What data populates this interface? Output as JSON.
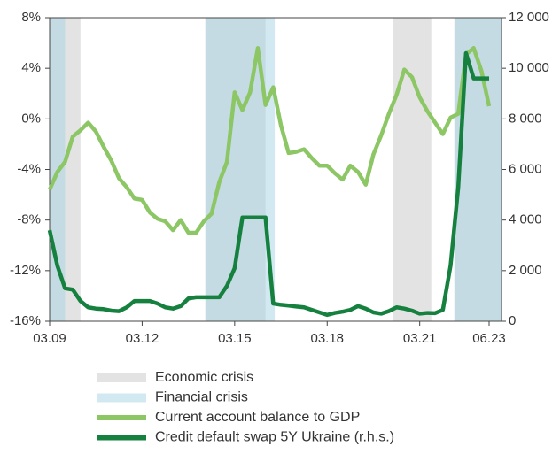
{
  "chart_data": {
    "type": "line",
    "categories": [
      "03.09",
      null,
      null,
      null,
      null,
      null,
      null,
      null,
      null,
      null,
      null,
      null,
      "03.12",
      null,
      null,
      null,
      null,
      null,
      null,
      null,
      null,
      null,
      null,
      null,
      "03.15",
      null,
      null,
      null,
      null,
      null,
      null,
      null,
      null,
      null,
      null,
      null,
      "03.18",
      null,
      null,
      null,
      null,
      null,
      null,
      null,
      null,
      null,
      null,
      null,
      "03.21",
      null,
      null,
      null,
      null,
      null,
      null,
      null,
      null,
      "06.23"
    ],
    "crisis_bands": [
      {
        "name": "Economic crisis",
        "color": "#e3e3e3",
        "ranges": [
          [
            0,
            4
          ],
          [
            20.2,
            28
          ],
          [
            44.5,
            49.5
          ],
          [
            52.5,
            58.6
          ]
        ]
      },
      {
        "name": "Financial crisis",
        "color": "#a8d4e6",
        "ranges": [
          [
            0,
            2
          ],
          [
            20.2,
            29.2
          ],
          [
            52.5,
            58.6
          ]
        ]
      }
    ],
    "series": [
      {
        "name": "Current account balance to GDP",
        "color": "#8cc665",
        "values": [
          -5.6,
          -4.2,
          -3.4,
          -1.4,
          -0.9,
          -0.3,
          -1.0,
          -2.2,
          -3.3,
          -4.7,
          -5.4,
          -6.3,
          -6.4,
          -7.4,
          -7.9,
          -8.1,
          -8.8,
          -8.0,
          -9.0,
          -9.0,
          -8.1,
          -7.5,
          -5.0,
          -3.4,
          2.1,
          0.7,
          2.1,
          5.6,
          1.1,
          2.5,
          -0.5,
          -2.7,
          -2.6,
          -2.4,
          -3.1,
          -3.7,
          -3.7,
          -4.3,
          -4.8,
          -3.7,
          -4.2,
          -5.2,
          -2.8,
          -1.3,
          0.4,
          1.9,
          3.9,
          3.3,
          1.7,
          0.6,
          -0.3,
          -1.2,
          0.1,
          0.4,
          5.1,
          5.6,
          3.8,
          1.0
        ]
      },
      {
        "name": "Credit default swap 5Y Ukraine (r.h.s.)",
        "color": "#16813f",
        "axis": "y2",
        "values": [
          3600,
          2200,
          1300,
          1250,
          800,
          550,
          500,
          480,
          420,
          400,
          550,
          800,
          800,
          800,
          700,
          550,
          500,
          600,
          900,
          950,
          950,
          950,
          950,
          1400,
          2100,
          4100,
          4100,
          4100,
          4100,
          700,
          650,
          620,
          580,
          550,
          450,
          350,
          250,
          330,
          380,
          450,
          600,
          500,
          350,
          300,
          400,
          550,
          500,
          420,
          300,
          330,
          320,
          450,
          2200,
          5300,
          10600,
          9600,
          9600,
          9600
        ]
      }
    ],
    "ylim": [
      -16,
      8
    ],
    "yticks": [
      {
        "value": -16,
        "label": "-16%"
      },
      {
        "value": -12,
        "label": "-12%"
      },
      {
        "value": -8,
        "label": "-8%"
      },
      {
        "value": -4,
        "label": "-4%"
      },
      {
        "value": 0,
        "label": "0%"
      },
      {
        "value": 4,
        "label": "4%"
      },
      {
        "value": 8,
        "label": "8%"
      }
    ],
    "y2lim": [
      0,
      12000
    ],
    "y2ticks": [
      0,
      {
        "value": 2000,
        "label": "2 000"
      },
      {
        "value": 4000,
        "label": "4 000"
      },
      {
        "value": 6000,
        "label": "6 000"
      },
      {
        "value": 8000,
        "label": "8 000"
      },
      {
        "value": 10000,
        "label": "10 000"
      },
      {
        "value": 12000,
        "label": "12 000"
      }
    ],
    "grid": false
  }
}
